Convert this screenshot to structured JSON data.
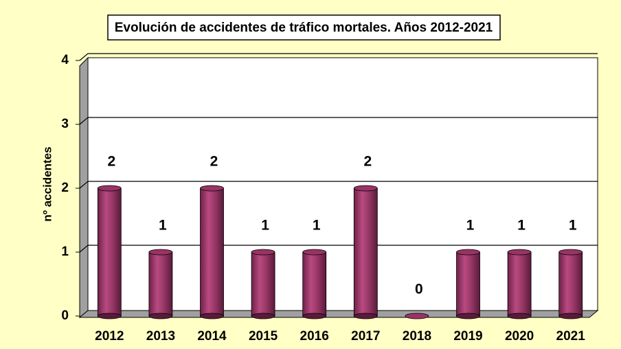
{
  "chart_data": {
    "type": "bar",
    "title": "Evolución de accidentes de tráfico mortales. Años 2012-2021",
    "ylabel": "nº accidentes",
    "categories": [
      "2012",
      "2013",
      "2014",
      "2015",
      "2016",
      "2017",
      "2018",
      "2019",
      "2020",
      "2021"
    ],
    "values": [
      2,
      1,
      2,
      1,
      1,
      2,
      0,
      1,
      1,
      1
    ],
    "color": "#993366",
    "ylim": [
      0,
      4
    ],
    "yticks": [
      0,
      1,
      2,
      3,
      4
    ],
    "grid": true
  }
}
